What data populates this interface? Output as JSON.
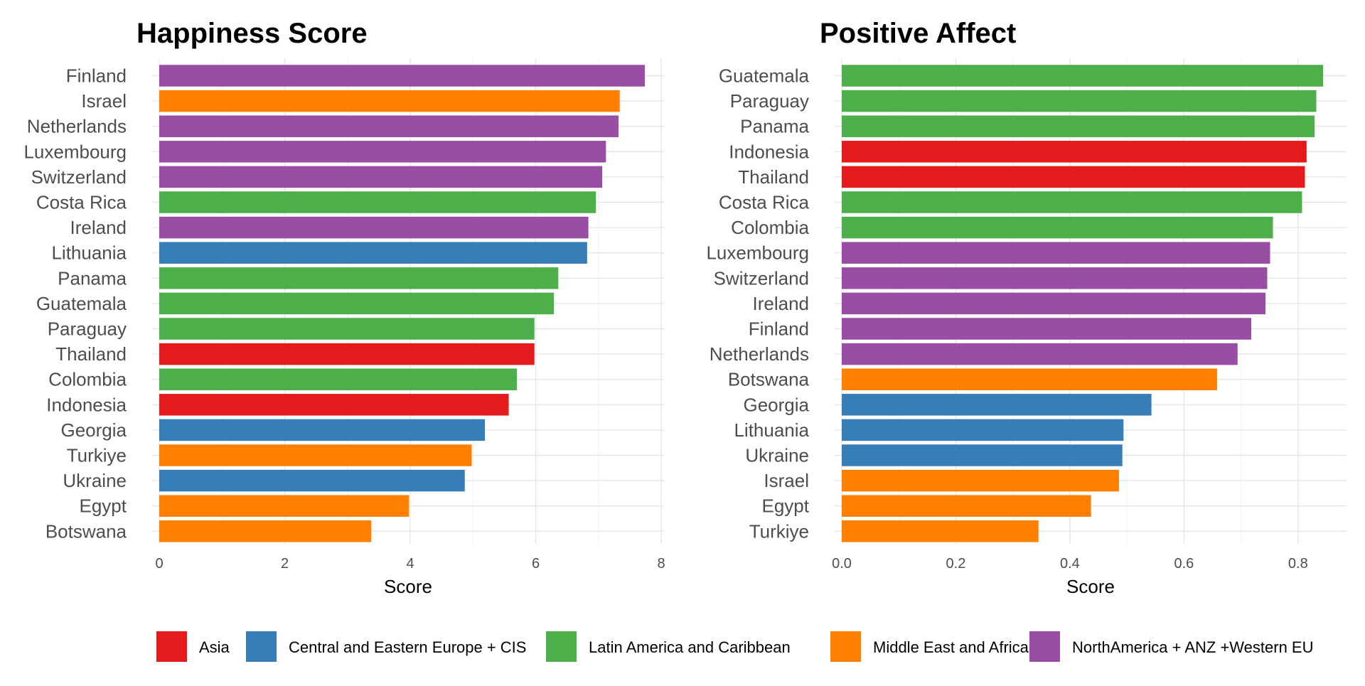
{
  "chart_data": [
    {
      "type": "bar",
      "orientation": "horizontal",
      "title": "Happiness Score",
      "xlabel": "Score",
      "ylabel": "",
      "xlim": [
        0,
        8
      ],
      "xticks": [
        0,
        2,
        4,
        6,
        8
      ],
      "xtick_labels": [
        "0",
        "2",
        "4",
        "6",
        "8"
      ],
      "grid": true,
      "categories": [
        "Finland",
        "Israel",
        "Netherlands",
        "Luxembourg",
        "Switzerland",
        "Costa Rica",
        "Ireland",
        "Lithuania",
        "Panama",
        "Guatemala",
        "Paraguay",
        "Thailand",
        "Colombia",
        "Indonesia",
        "Georgia",
        "Turkiye",
        "Ukraine",
        "Egypt",
        "Botswana"
      ],
      "values": [
        7.74,
        7.34,
        7.32,
        7.12,
        7.06,
        6.96,
        6.84,
        6.82,
        6.36,
        6.29,
        5.98,
        5.98,
        5.7,
        5.57,
        5.19,
        4.98,
        4.87,
        3.98,
        3.38
      ],
      "regions": [
        "NorthAmerica + ANZ +Western EU",
        "Middle East and Africa",
        "NorthAmerica + ANZ +Western EU",
        "NorthAmerica + ANZ +Western EU",
        "NorthAmerica + ANZ +Western EU",
        "Latin America and Caribbean",
        "NorthAmerica + ANZ +Western EU",
        "Central and Eastern Europe + CIS",
        "Latin America and Caribbean",
        "Latin America and Caribbean",
        "Latin America and Caribbean",
        "Asia",
        "Latin America and Caribbean",
        "Asia",
        "Central and Eastern Europe + CIS",
        "Middle East and Africa",
        "Central and Eastern Europe + CIS",
        "Middle East and Africa",
        "Middle East and Africa"
      ]
    },
    {
      "type": "bar",
      "orientation": "horizontal",
      "title": "Positive Affect",
      "xlabel": "Score",
      "ylabel": "",
      "xlim": [
        0,
        0.88
      ],
      "xticks": [
        0,
        0.2,
        0.4,
        0.6,
        0.8
      ],
      "xtick_labels": [
        "0.0",
        "0.2",
        "0.4",
        "0.6",
        "0.8"
      ],
      "grid": true,
      "categories": [
        "Guatemala",
        "Paraguay",
        "Panama",
        "Indonesia",
        "Thailand",
        "Costa Rica",
        "Colombia",
        "Luxembourg",
        "Switzerland",
        "Ireland",
        "Finland",
        "Netherlands",
        "Botswana",
        "Georgia",
        "Lithuania",
        "Ukraine",
        "Israel",
        "Egypt",
        "Turkiye"
      ],
      "values": [
        0.844,
        0.832,
        0.829,
        0.815,
        0.812,
        0.807,
        0.756,
        0.751,
        0.746,
        0.743,
        0.718,
        0.694,
        0.658,
        0.543,
        0.494,
        0.492,
        0.486,
        0.437,
        0.345
      ],
      "regions": [
        "Latin America and Caribbean",
        "Latin America and Caribbean",
        "Latin America and Caribbean",
        "Asia",
        "Asia",
        "Latin America and Caribbean",
        "Latin America and Caribbean",
        "NorthAmerica + ANZ +Western EU",
        "NorthAmerica + ANZ +Western EU",
        "NorthAmerica + ANZ +Western EU",
        "NorthAmerica + ANZ +Western EU",
        "NorthAmerica + ANZ +Western EU",
        "Middle East and Africa",
        "Central and Eastern Europe + CIS",
        "Central and Eastern Europe + CIS",
        "Central and Eastern Europe + CIS",
        "Middle East and Africa",
        "Middle East and Africa",
        "Middle East and Africa"
      ]
    }
  ],
  "legend": {
    "placement": "bottom",
    "items": [
      {
        "label": "Asia",
        "color": "#e41a1c"
      },
      {
        "label": "Central and Eastern Europe + CIS",
        "color": "#377eb8"
      },
      {
        "label": "Latin America and Caribbean",
        "color": "#4daf4a"
      },
      {
        "label": "Middle East and Africa",
        "color": "#ff7f00"
      },
      {
        "label": "NorthAmerica + ANZ +Western EU",
        "color": "#984ea3"
      }
    ]
  }
}
